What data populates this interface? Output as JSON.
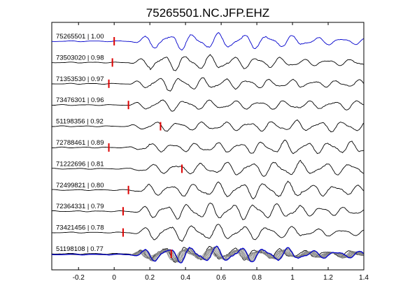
{
  "chart_data": {
    "type": "line",
    "title": "75265501.NC.JFP.EHZ",
    "xlabel": "",
    "ylabel": "",
    "xlim": [
      -0.35,
      1.4
    ],
    "x_ticks": [
      "-0.2",
      "0",
      "0.2",
      "0.4",
      "0.6",
      "0.8",
      "1",
      "1.2",
      "1.4"
    ],
    "x_tick_values": [
      -0.2,
      0,
      0.2,
      0.4,
      0.6,
      0.8,
      1.0,
      1.2,
      1.4
    ],
    "grid": false,
    "colors": {
      "reference": "#0000cc",
      "trace": "#000000",
      "pick": "#dd0000",
      "stack": "#808080"
    },
    "traces": [
      {
        "label": "75265501 | 1.00",
        "pick_x": 0.0,
        "color": "#0000cc"
      },
      {
        "label": "73503020 | 0.98",
        "pick_x": -0.01,
        "color": "#000000"
      },
      {
        "label": "71353530 | 0.97",
        "pick_x": -0.03,
        "color": "#000000"
      },
      {
        "label": "73476301 | 0.96",
        "pick_x": 0.08,
        "color": "#000000"
      },
      {
        "label": "51198356 | 0.92",
        "pick_x": 0.26,
        "color": "#000000"
      },
      {
        "label": "72788461 | 0.89",
        "pick_x": -0.03,
        "color": "#000000"
      },
      {
        "label": "71222696 | 0.81",
        "pick_x": 0.38,
        "color": "#000000"
      },
      {
        "label": "72499821 | 0.80",
        "pick_x": 0.08,
        "color": "#000000"
      },
      {
        "label": "72364331 | 0.79",
        "pick_x": 0.05,
        "color": "#000000"
      },
      {
        "label": "73421456 | 0.78",
        "pick_x": 0.05,
        "color": "#000000"
      },
      {
        "label": "51198108 | 0.77",
        "pick_x": 0.32,
        "color": "#000000"
      }
    ],
    "stack_panel": true
  }
}
